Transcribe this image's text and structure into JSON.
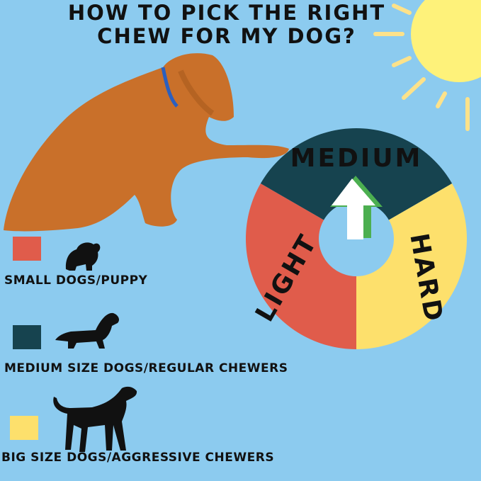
{
  "title_line1": "HOW TO PICK THE RIGHT",
  "title_line2": "CHEW FOR MY DOG?",
  "wheel": {
    "segments": [
      {
        "label": "LIGHT",
        "color": "#e05c4b"
      },
      {
        "label": "MEDIUM",
        "color": "#16434f"
      },
      {
        "label": "HARD",
        "color": "#fde06c"
      }
    ],
    "pointer": "arrow-up-icon"
  },
  "legend": [
    {
      "label": "SMALL DOGS/PUPPY",
      "color": "#e05c4b",
      "icon": "small-dog-icon"
    },
    {
      "label": "MEDIUM SIZE DOGS/REGULAR CHEWERS",
      "color": "#16434f",
      "icon": "dachshund-icon"
    },
    {
      "label": "BIG SIZE DOGS/AGGRESSIVE CHEWERS",
      "color": "#fde06c",
      "icon": "big-dog-icon"
    }
  ],
  "colors": {
    "background": "#8ccbef",
    "sun": "#fef27a",
    "dog": "#c9702a"
  }
}
